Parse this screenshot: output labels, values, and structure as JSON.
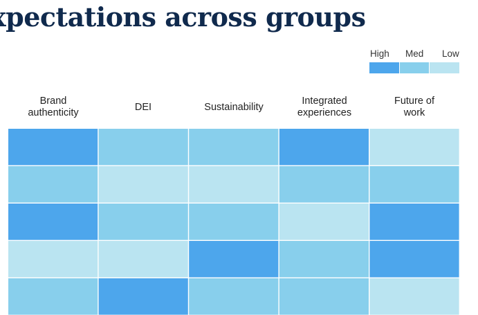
{
  "title": "xpectations across groups",
  "legend": {
    "items": [
      {
        "label": "High",
        "color": "#4da6ec"
      },
      {
        "label": "Med",
        "color": "#88cfec"
      },
      {
        "label": "Low",
        "color": "#bae4f1"
      }
    ]
  },
  "chart_data": {
    "type": "heatmap",
    "columns": [
      "Brand\nauthenticity",
      "DEI",
      "Sustainability",
      "Integrated\nexperiences",
      "Future of\nwork"
    ],
    "levels": [
      "High",
      "Med",
      "Low"
    ],
    "rows": [
      [
        "High",
        "Med",
        "Med",
        "High",
        "Low"
      ],
      [
        "Med",
        "Low",
        "Low",
        "Med",
        "Med"
      ],
      [
        "High",
        "Med",
        "Med",
        "Low",
        "High"
      ],
      [
        "Low",
        "Low",
        "High",
        "Med",
        "High"
      ],
      [
        "Med",
        "High",
        "Med",
        "Med",
        "Low"
      ]
    ],
    "colors": {
      "High": "#4da6ec",
      "Med": "#88cfec",
      "Low": "#bae4f1"
    }
  }
}
